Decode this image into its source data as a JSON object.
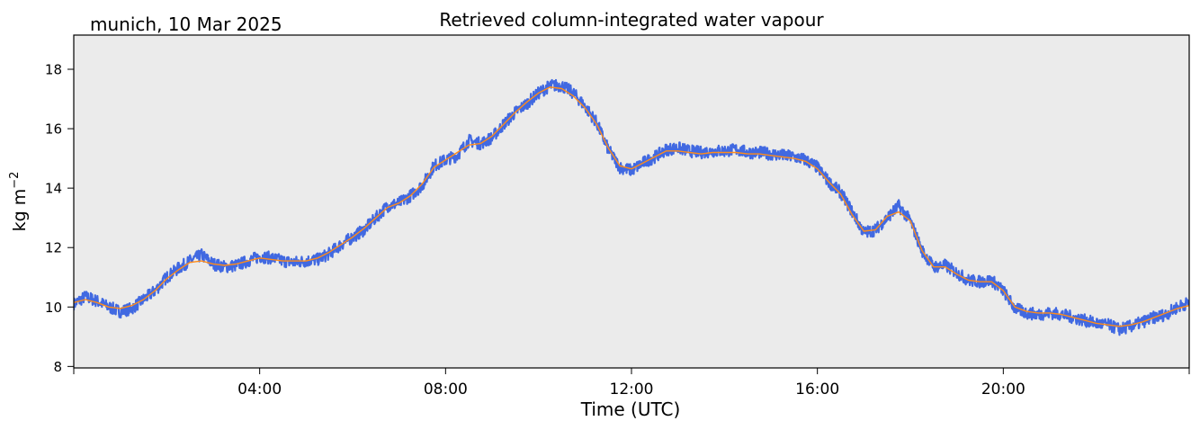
{
  "chart_data": {
    "type": "line",
    "location_date": "munich, 10 Mar 2025",
    "title": "Retrieved column-integrated water vapour",
    "xlabel": "Time (UTC)",
    "ylabel": "kg m",
    "ylabel_superscript": "−2",
    "x_unit": "hours since 00:00 UTC",
    "xlim": [
      0,
      24
    ],
    "ylim": [
      7.95,
      19.15
    ],
    "x_ticks": [
      {
        "value": 4,
        "label": "04:00"
      },
      {
        "value": 8,
        "label": "08:00"
      },
      {
        "value": 12,
        "label": "12:00"
      },
      {
        "value": 16,
        "label": "16:00"
      },
      {
        "value": 20,
        "label": "20:00"
      }
    ],
    "y_ticks": [
      {
        "value": 8,
        "label": "8"
      },
      {
        "value": 10,
        "label": "10"
      },
      {
        "value": 12,
        "label": "12"
      },
      {
        "value": 14,
        "label": "14"
      },
      {
        "value": 16,
        "label": "16"
      },
      {
        "value": 18,
        "label": "18"
      }
    ],
    "grid": false,
    "background_color": "#ebebeb",
    "series": [
      {
        "color": "#4169e1",
        "style": "noisy raw retrievals",
        "x": [
          0.0,
          0.25,
          0.5,
          0.75,
          1.0,
          1.25,
          1.5,
          1.75,
          2.0,
          2.25,
          2.5,
          2.75,
          3.0,
          3.25,
          3.5,
          3.75,
          4.0,
          4.25,
          4.5,
          4.75,
          5.0,
          5.25,
          5.5,
          5.75,
          6.0,
          6.25,
          6.5,
          6.75,
          7.0,
          7.25,
          7.5,
          7.75,
          8.0,
          8.25,
          8.5,
          8.75,
          9.0,
          9.25,
          9.5,
          9.75,
          10.0,
          10.25,
          10.5,
          10.75,
          11.0,
          11.25,
          11.5,
          11.75,
          12.0,
          12.25,
          12.5,
          12.75,
          13.0,
          13.25,
          13.5,
          13.75,
          14.0,
          14.25,
          14.5,
          14.75,
          15.0,
          15.25,
          15.5,
          15.75,
          16.0,
          16.25,
          16.5,
          16.75,
          17.0,
          17.25,
          17.5,
          17.75,
          18.0,
          18.25,
          18.5,
          18.75,
          19.0,
          19.25,
          19.5,
          19.75,
          20.0,
          20.25,
          20.5,
          20.75,
          21.0,
          21.25,
          21.5,
          21.75,
          22.0,
          22.25,
          22.5,
          22.75,
          23.0,
          23.25,
          23.5,
          23.75,
          24.0
        ],
        "y": [
          10.1,
          10.35,
          10.2,
          10.0,
          9.85,
          9.95,
          10.25,
          10.55,
          11.0,
          11.3,
          11.55,
          11.75,
          11.45,
          11.35,
          11.4,
          11.55,
          11.7,
          11.65,
          11.55,
          11.5,
          11.55,
          11.6,
          11.8,
          12.1,
          12.35,
          12.6,
          13.0,
          13.4,
          13.5,
          13.75,
          14.1,
          14.75,
          14.95,
          15.1,
          15.6,
          15.5,
          15.7,
          16.15,
          16.55,
          16.85,
          17.2,
          17.45,
          17.45,
          17.2,
          16.75,
          16.2,
          15.3,
          14.7,
          14.6,
          14.85,
          15.05,
          15.3,
          15.35,
          15.25,
          15.2,
          15.25,
          15.25,
          15.3,
          15.2,
          15.2,
          15.15,
          15.1,
          15.05,
          14.95,
          14.7,
          14.2,
          13.85,
          13.2,
          12.5,
          12.6,
          13.0,
          13.4,
          12.9,
          11.9,
          11.35,
          11.4,
          11.15,
          10.9,
          10.85,
          10.9,
          10.55,
          9.95,
          9.8,
          9.75,
          9.8,
          9.75,
          9.65,
          9.55,
          9.45,
          9.4,
          9.25,
          9.35,
          9.5,
          9.65,
          9.75,
          10.0,
          10.15
        ]
      },
      {
        "color": "#ff8c1a",
        "style": "smoothed",
        "x": [
          0.0,
          0.25,
          0.5,
          0.75,
          1.0,
          1.25,
          1.5,
          1.75,
          2.0,
          2.25,
          2.5,
          2.75,
          3.0,
          3.25,
          3.5,
          3.75,
          4.0,
          4.25,
          4.5,
          4.75,
          5.0,
          5.25,
          5.5,
          5.75,
          6.0,
          6.25,
          6.5,
          6.75,
          7.0,
          7.25,
          7.5,
          7.75,
          8.0,
          8.25,
          8.5,
          8.75,
          9.0,
          9.25,
          9.5,
          9.75,
          10.0,
          10.25,
          10.5,
          10.75,
          11.0,
          11.25,
          11.5,
          11.75,
          12.0,
          12.25,
          12.5,
          12.75,
          13.0,
          13.25,
          13.5,
          13.75,
          14.0,
          14.25,
          14.5,
          14.75,
          15.0,
          15.25,
          15.5,
          15.75,
          16.0,
          16.25,
          16.5,
          16.75,
          17.0,
          17.25,
          17.5,
          17.75,
          18.0,
          18.25,
          18.5,
          18.75,
          19.0,
          19.25,
          19.5,
          19.75,
          20.0,
          20.25,
          20.5,
          20.75,
          21.0,
          21.25,
          21.5,
          21.75,
          22.0,
          22.25,
          22.5,
          22.75,
          23.0,
          23.25,
          23.5,
          23.75,
          24.0
        ],
        "y": [
          10.15,
          10.25,
          10.15,
          10.0,
          9.95,
          10.05,
          10.25,
          10.55,
          10.95,
          11.25,
          11.5,
          11.55,
          11.45,
          11.4,
          11.45,
          11.55,
          11.65,
          11.6,
          11.55,
          11.55,
          11.55,
          11.65,
          11.85,
          12.1,
          12.35,
          12.65,
          13.0,
          13.35,
          13.5,
          13.75,
          14.15,
          14.7,
          14.95,
          15.2,
          15.45,
          15.5,
          15.75,
          16.15,
          16.55,
          16.9,
          17.2,
          17.4,
          17.35,
          17.1,
          16.7,
          16.15,
          15.35,
          14.75,
          14.65,
          14.85,
          15.05,
          15.25,
          15.25,
          15.2,
          15.15,
          15.2,
          15.2,
          15.2,
          15.15,
          15.15,
          15.1,
          15.05,
          15.0,
          14.9,
          14.65,
          14.2,
          13.8,
          13.1,
          12.55,
          12.6,
          13.05,
          13.2,
          12.9,
          11.9,
          11.35,
          11.35,
          11.1,
          10.9,
          10.85,
          10.85,
          10.55,
          10.0,
          9.85,
          9.8,
          9.8,
          9.75,
          9.65,
          9.55,
          9.45,
          9.4,
          9.35,
          9.4,
          9.5,
          9.65,
          9.8,
          9.95,
          10.05
        ]
      }
    ]
  }
}
